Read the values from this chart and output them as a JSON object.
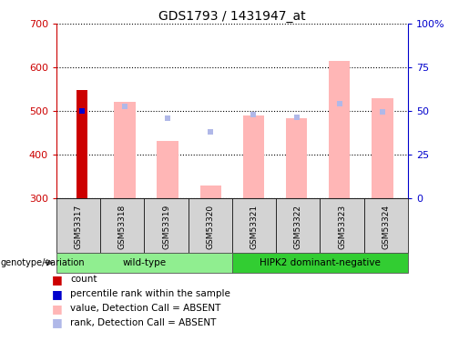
{
  "title": "GDS1793 / 1431947_at",
  "samples": [
    "GSM53317",
    "GSM53318",
    "GSM53319",
    "GSM53320",
    "GSM53321",
    "GSM53322",
    "GSM53323",
    "GSM53324"
  ],
  "groups": [
    {
      "label": "wild-type",
      "indices": [
        0,
        1,
        2,
        3
      ],
      "color": "#90ee90"
    },
    {
      "label": "HIPK2 dominant-negative",
      "indices": [
        4,
        5,
        6,
        7
      ],
      "color": "#00cc00"
    }
  ],
  "ylim_left": [
    300,
    700
  ],
  "ylim_right": [
    0,
    100
  ],
  "yticks_left": [
    300,
    400,
    500,
    600,
    700
  ],
  "yticks_right": [
    0,
    25,
    50,
    75,
    100
  ],
  "ytick_labels_right": [
    "0",
    "25",
    "50",
    "75",
    "100%"
  ],
  "bar_base": 300,
  "count_bar": {
    "index": 0,
    "value": 548,
    "color": "#cc0000"
  },
  "percentile_rank_bar": {
    "index": 0,
    "value": 500,
    "color": "#0000cc"
  },
  "absent_value_bars": [
    {
      "index": 1,
      "value": 520
    },
    {
      "index": 2,
      "value": 430
    },
    {
      "index": 3,
      "value": 328
    },
    {
      "index": 4,
      "value": 490
    },
    {
      "index": 5,
      "value": 482
    },
    {
      "index": 6,
      "value": 615
    },
    {
      "index": 7,
      "value": 528
    }
  ],
  "absent_rank_markers": [
    {
      "index": 1,
      "value": 510
    },
    {
      "index": 2,
      "value": 483
    },
    {
      "index": 3,
      "value": 452
    },
    {
      "index": 4,
      "value": 492
    },
    {
      "index": 5,
      "value": 485
    },
    {
      "index": 6,
      "value": 517
    },
    {
      "index": 7,
      "value": 498
    }
  ],
  "absent_value_color": "#ffb6b6",
  "absent_rank_color": "#b0b8e8",
  "axis_left_color": "#cc0000",
  "axis_right_color": "#0000cc",
  "bg_color": "#ffffff",
  "legend_items": [
    {
      "label": "count",
      "color": "#cc0000"
    },
    {
      "label": "percentile rank within the sample",
      "color": "#0000cc"
    },
    {
      "label": "value, Detection Call = ABSENT",
      "color": "#ffb6b6"
    },
    {
      "label": "rank, Detection Call = ABSENT",
      "color": "#b0b8e8"
    }
  ],
  "genotype_label": "genotype/variation",
  "bar_width": 0.5,
  "count_bar_width": 0.25,
  "sample_box_color": "#d3d3d3",
  "group_wt_color": "#90ee90",
  "group_hipk2_color": "#32cd32"
}
